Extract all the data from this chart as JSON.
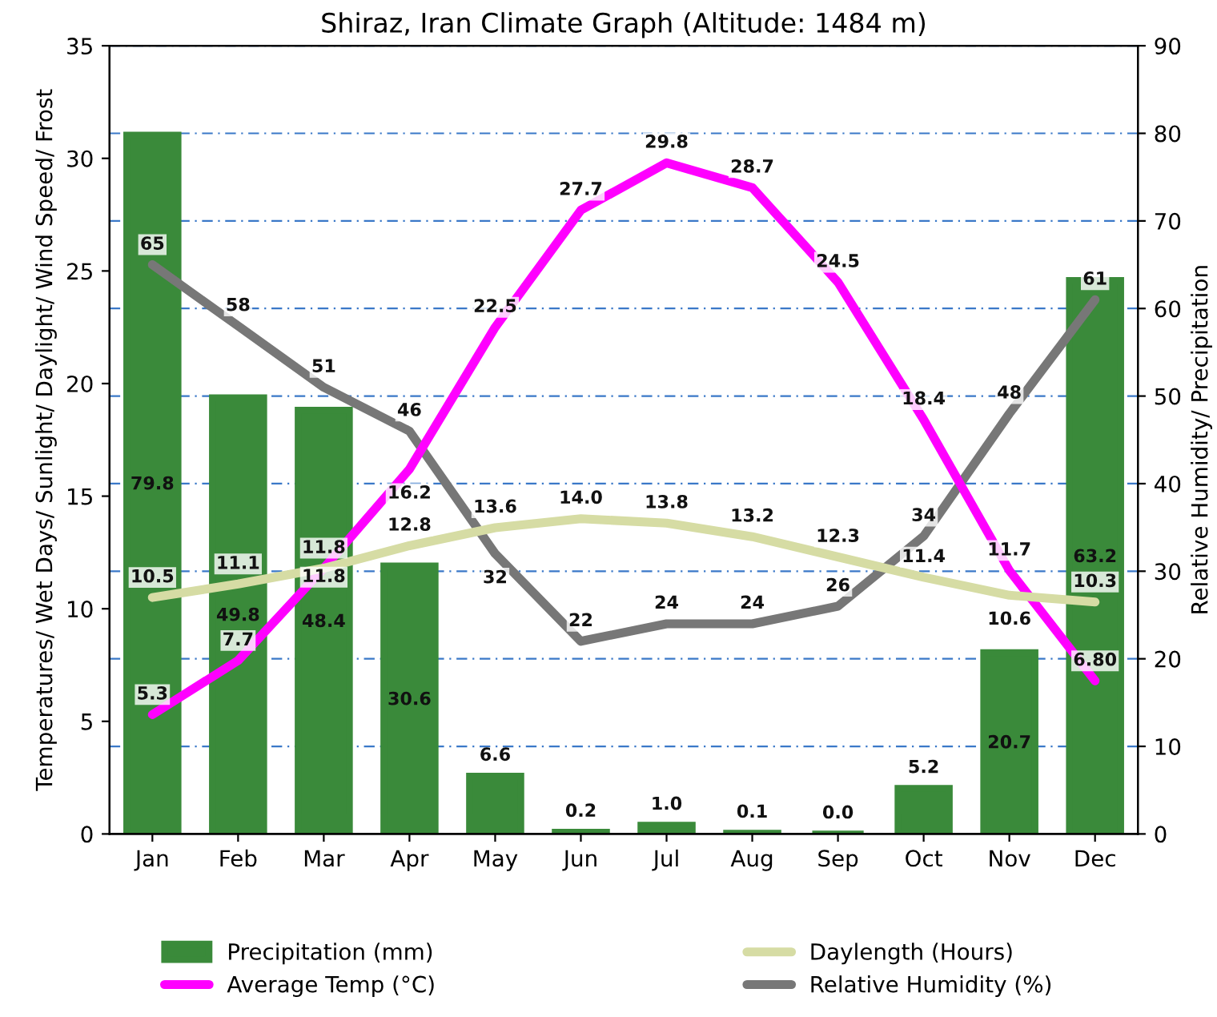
{
  "chart_data": {
    "type": "bar",
    "title": "Shiraz, Iran Climate Graph (Altitude: 1484 m)",
    "ylabel": "Temperatures/ Wet Days/ Sunlight/ Daylight/ Wind Speed/ Frost",
    "y2label": "Relative Humidity/ Precipitation",
    "categories": [
      "Jan",
      "Feb",
      "Mar",
      "Apr",
      "May",
      "Jun",
      "Jul",
      "Aug",
      "Sep",
      "Oct",
      "Nov",
      "Dec"
    ],
    "series": [
      {
        "name": "Precipitation (mm)",
        "axis": "y2",
        "color": "#3a8a3a",
        "values": [
          79.8,
          49.8,
          48.4,
          30.6,
          6.6,
          0.2,
          1.0,
          0.1,
          0.0,
          5.2,
          20.7,
          63.2
        ],
        "value_labels": [
          "79.8",
          "49.8",
          "48.4",
          "30.6",
          "6.6",
          "0.2",
          "1.0",
          "0.1",
          "0.0",
          "5.2",
          "20.7",
          "63.2"
        ]
      },
      {
        "name": "Average Temp (°C)",
        "type": "line",
        "color": "#ff00ff",
        "values": [
          5.3,
          7.7,
          11.8,
          16.2,
          22.5,
          27.7,
          29.8,
          28.7,
          24.5,
          18.4,
          11.7,
          6.8
        ],
        "value_labels": [
          "5.3",
          "7.7",
          "11.8",
          "16.2",
          "22.5",
          "27.7",
          "29.8",
          "28.7",
          "24.5",
          "18.4",
          "11.7",
          "6.80"
        ]
      },
      {
        "name": "Daylength (Hours)",
        "type": "line",
        "color": "#d6dca4",
        "values": [
          10.5,
          11.1,
          11.8,
          12.8,
          13.6,
          14.0,
          13.8,
          13.2,
          12.3,
          11.4,
          10.6,
          10.3
        ],
        "value_labels": [
          "10.5",
          "11.1",
          "11.8",
          "12.8",
          "13.6",
          "14.0",
          "13.8",
          "13.2",
          "12.3",
          "11.4",
          "10.6",
          "10.3"
        ]
      },
      {
        "name": "Relative Humidity (%)",
        "type": "line",
        "axis": "y2",
        "color": "#777777",
        "values": [
          65,
          58,
          51,
          46,
          32,
          22,
          24,
          24,
          26,
          34,
          48,
          61
        ]
      }
    ],
    "ylim": [
      0,
      35
    ],
    "yticks": [
      0,
      5,
      10,
      15,
      20,
      25,
      30,
      35
    ],
    "y2lim": [
      0,
      90
    ],
    "y2ticks": [
      0,
      10,
      20,
      30,
      40,
      50,
      60,
      70,
      80,
      90
    ],
    "data_labels": true,
    "grid": "y",
    "legend": "bottom",
    "marker": "none"
  }
}
